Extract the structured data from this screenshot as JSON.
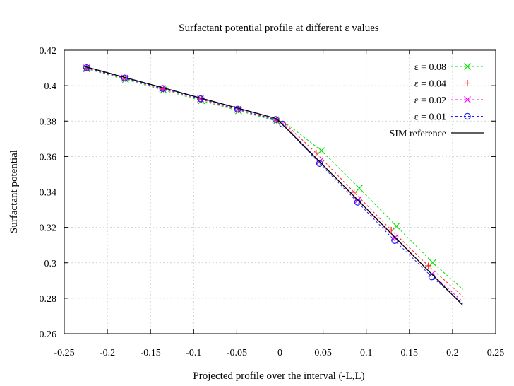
{
  "chart_data": {
    "type": "line",
    "title": "Surfactant potential profile at different ε values",
    "xlabel": "Projected profile over the interval (-L,L)",
    "ylabel": "Surfactant potential",
    "xlim": [
      -0.25,
      0.25
    ],
    "ylim": [
      0.26,
      0.42
    ],
    "xticks": [
      -0.25,
      -0.2,
      -0.15,
      -0.1,
      -0.05,
      0,
      0.05,
      0.1,
      0.15,
      0.2,
      0.25
    ],
    "xtick_labels": [
      "-0.25",
      "-0.2",
      "-0.15",
      "-0.1",
      "-0.05",
      "0",
      "0.05",
      "0.1",
      "0.15",
      "0.2",
      "0.25"
    ],
    "yticks": [
      0.26,
      0.28,
      0.3,
      0.32,
      0.34,
      0.36,
      0.38,
      0.4,
      0.42
    ],
    "ytick_labels": [
      "0.26",
      "0.28",
      "0.3",
      "0.32",
      "0.34",
      "0.36",
      "0.38",
      "0.4",
      "0.42"
    ],
    "grid": true,
    "legend_position": "top-right",
    "series": [
      {
        "name": "ε = 0.08",
        "color": "#00e000",
        "marker": "x",
        "dash": true,
        "x": [
          -0.224,
          -0.179,
          -0.135,
          -0.091,
          -0.048,
          -0.004,
          0.005,
          0.048,
          0.092,
          0.135,
          0.177,
          0.212
        ],
        "y": [
          0.4095,
          0.4035,
          0.3975,
          0.3915,
          0.3858,
          0.38,
          0.3795,
          0.3633,
          0.3421,
          0.3207,
          0.3001,
          0.285
        ],
        "marker_x": [
          -0.224,
          -0.179,
          -0.135,
          -0.091,
          -0.048,
          -0.004,
          0.048,
          0.092,
          0.135,
          0.177
        ],
        "marker_y": [
          0.4095,
          0.4035,
          0.3975,
          0.3915,
          0.3858,
          0.38,
          0.3633,
          0.3421,
          0.3207,
          0.3001
        ]
      },
      {
        "name": "ε = 0.04",
        "color": "#ff2020",
        "marker": "+",
        "dash": true,
        "x": [
          -0.224,
          -0.179,
          -0.135,
          -0.091,
          -0.048,
          -0.004,
          0.004,
          0.042,
          0.086,
          0.129,
          0.172,
          0.212
        ],
        "y": [
          0.4098,
          0.404,
          0.398,
          0.3922,
          0.3863,
          0.3805,
          0.3795,
          0.362,
          0.3398,
          0.3185,
          0.2983,
          0.281
        ],
        "marker_x": [
          -0.224,
          -0.179,
          -0.135,
          -0.091,
          -0.048,
          -0.004,
          0.042,
          0.086,
          0.129,
          0.172
        ],
        "marker_y": [
          0.4098,
          0.404,
          0.398,
          0.3922,
          0.3863,
          0.3805,
          0.362,
          0.3398,
          0.3185,
          0.2983
        ]
      },
      {
        "name": "ε = 0.02",
        "color": "#ff00ff",
        "marker": "x",
        "dash": true,
        "x": [
          -0.224,
          -0.18,
          -0.136,
          -0.092,
          -0.049,
          -0.005,
          0.003,
          0.046,
          0.09,
          0.133,
          0.176,
          0.212
        ],
        "y": [
          0.41,
          0.4042,
          0.3983,
          0.3925,
          0.3866,
          0.3808,
          0.379,
          0.3572,
          0.3352,
          0.3141,
          0.2936,
          0.278
        ],
        "marker_x": [
          -0.224,
          -0.18,
          -0.136,
          -0.092,
          -0.049,
          -0.005,
          0.046,
          0.09,
          0.133,
          0.176
        ],
        "marker_y": [
          0.41,
          0.4042,
          0.3983,
          0.3925,
          0.3866,
          0.3808,
          0.3572,
          0.3352,
          0.3141,
          0.2936
        ]
      },
      {
        "name": "ε = 0.01",
        "color": "#2020ff",
        "marker": "o",
        "dash": true,
        "x": [
          -0.224,
          -0.18,
          -0.136,
          -0.092,
          -0.049,
          -0.005,
          0.003,
          0.046,
          0.09,
          0.133,
          0.176,
          0.212
        ],
        "y": [
          0.4101,
          0.4043,
          0.3984,
          0.3926,
          0.3867,
          0.3809,
          0.3783,
          0.3561,
          0.3342,
          0.3126,
          0.2921,
          0.277
        ],
        "marker_x": [
          -0.224,
          -0.18,
          -0.136,
          -0.092,
          -0.049,
          -0.005,
          0.003,
          0.046,
          0.09,
          0.133,
          0.176
        ],
        "marker_y": [
          0.4101,
          0.4043,
          0.3984,
          0.3926,
          0.3867,
          0.3809,
          0.3783,
          0.3561,
          0.3342,
          0.3126,
          0.2921
        ]
      },
      {
        "name": "SIM reference",
        "color": "#000000",
        "marker": "none",
        "dash": false,
        "x": [
          -0.226,
          -0.005,
          0.0,
          0.212
        ],
        "y": [
          0.4108,
          0.3815,
          0.3795,
          0.276
        ]
      }
    ]
  }
}
